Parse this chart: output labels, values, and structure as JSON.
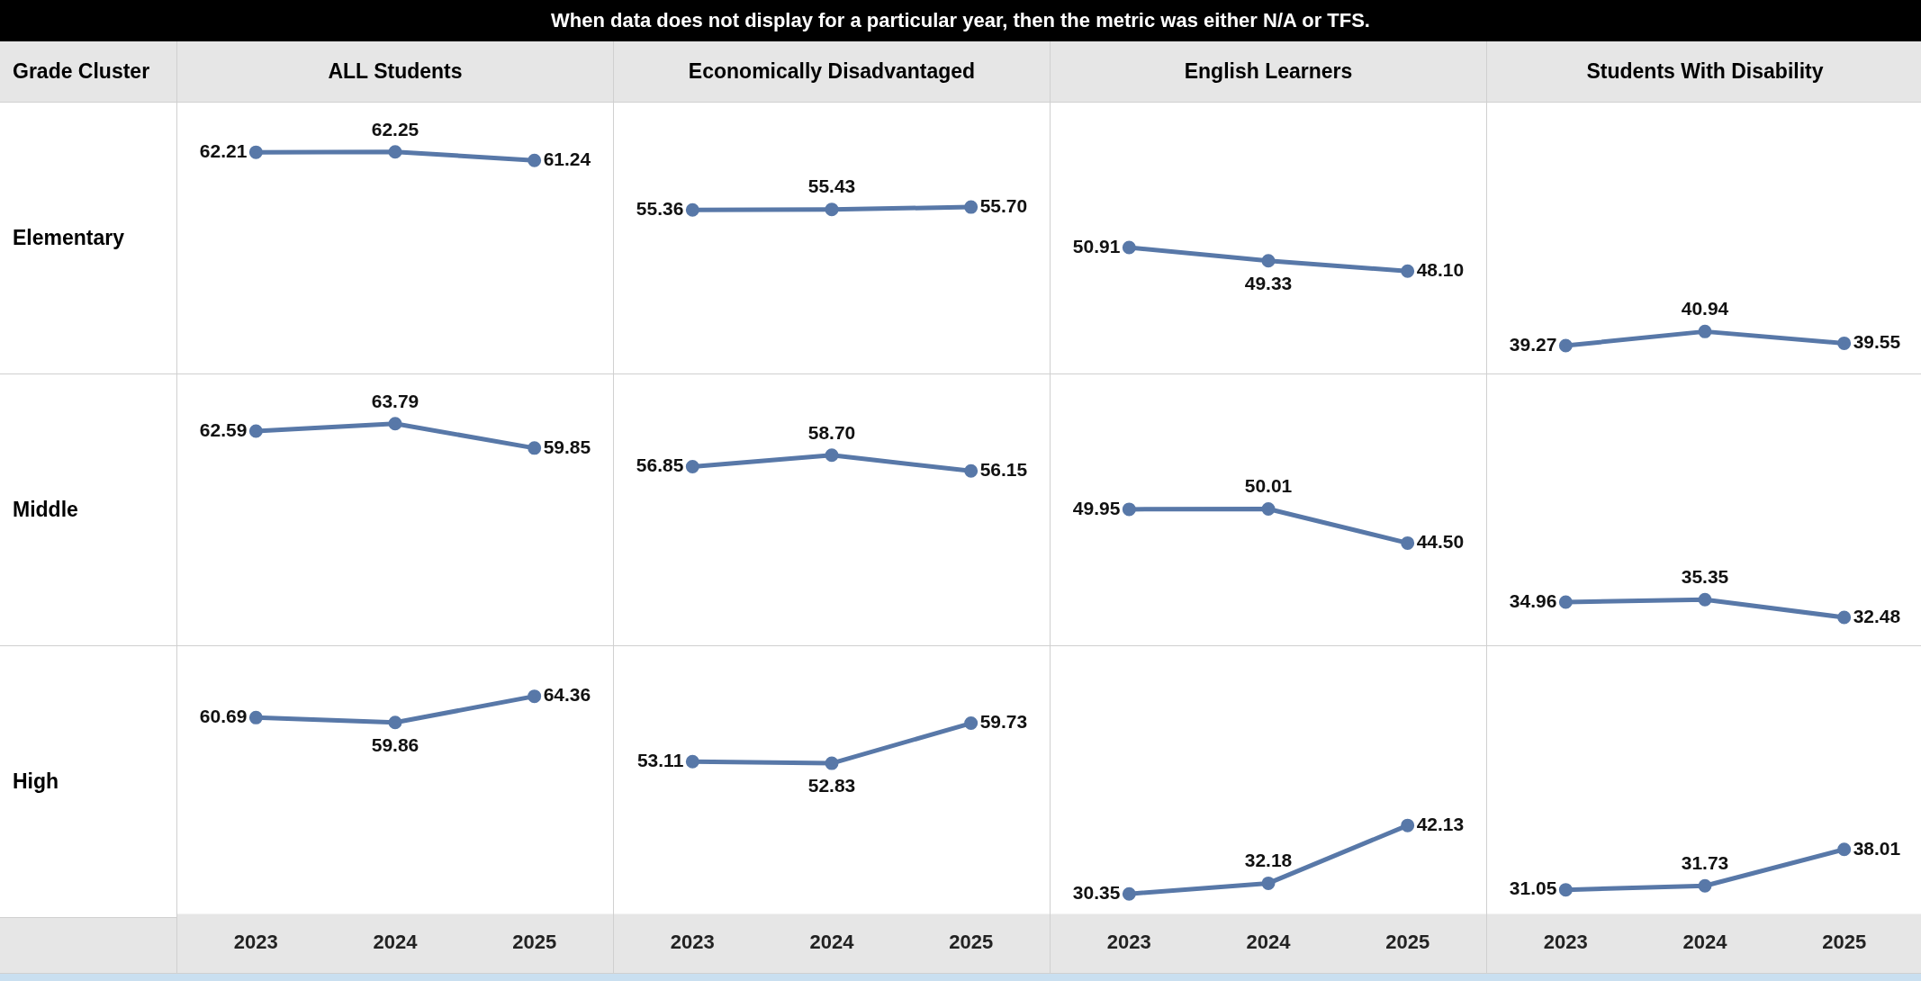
{
  "chart_data": [
    {
      "type": "line",
      "title": "ALL Students",
      "ylabel": "Elementary",
      "annotations": [
        "When data does not display for a particular year, then the metric was either N/A or TFS.",
        "Grade Cluster"
      ],
      "categories": [
        "2023",
        "2024",
        "2025"
      ],
      "values": [
        62.21,
        62.25,
        61.24
      ],
      "value_labels": [
        "62.21",
        "62.25",
        "61.24"
      ],
      "color": "#5878a8",
      "marker": "circle",
      "tick_labels": false
    },
    {
      "type": "line",
      "title": "Economically Disadvantaged",
      "categories": [
        "2023",
        "2024",
        "2025"
      ],
      "values": [
        55.36,
        55.43,
        55.7
      ],
      "value_labels": [
        "55.36",
        "55.43",
        "55.70"
      ],
      "color": "#5878a8",
      "marker": "circle",
      "tick_labels": false
    },
    {
      "type": "line",
      "title": "English Learners",
      "categories": [
        "2023",
        "2024",
        "2025"
      ],
      "values": [
        50.91,
        49.33,
        48.1
      ],
      "value_labels": [
        "50.91",
        "49.33",
        "48.10"
      ],
      "color": "#5878a8",
      "marker": "circle",
      "tick_labels": false
    },
    {
      "type": "line",
      "title": "Students With Disability",
      "categories": [
        "2023",
        "2024",
        "2025"
      ],
      "values": [
        39.27,
        40.94,
        39.55
      ],
      "value_labels": [
        "39.27",
        "40.94",
        "39.55"
      ],
      "color": "#5878a8",
      "marker": "circle",
      "tick_labels": false
    },
    {
      "type": "line",
      "ylabel": "Middle",
      "categories": [
        "2023",
        "2024",
        "2025"
      ],
      "values": [
        62.59,
        63.79,
        59.85
      ],
      "value_labels": [
        "62.59",
        "63.79",
        "59.85"
      ],
      "color": "#5878a8",
      "marker": "circle",
      "tick_labels": false
    },
    {
      "type": "line",
      "categories": [
        "2023",
        "2024",
        "2025"
      ],
      "values": [
        56.85,
        58.7,
        56.15
      ],
      "value_labels": [
        "56.85",
        "58.70",
        "56.15"
      ],
      "color": "#5878a8",
      "marker": "circle",
      "tick_labels": false
    },
    {
      "type": "line",
      "categories": [
        "2023",
        "2024",
        "2025"
      ],
      "values": [
        49.95,
        50.01,
        44.5
      ],
      "value_labels": [
        "49.95",
        "50.01",
        "44.50"
      ],
      "color": "#5878a8",
      "marker": "circle",
      "tick_labels": false
    },
    {
      "type": "line",
      "categories": [
        "2023",
        "2024",
        "2025"
      ],
      "values": [
        34.96,
        35.35,
        32.48
      ],
      "value_labels": [
        "34.96",
        "35.35",
        "32.48"
      ],
      "color": "#5878a8",
      "marker": "circle",
      "tick_labels": false
    },
    {
      "type": "line",
      "ylabel": "High",
      "categories": [
        "2023",
        "2024",
        "2025"
      ],
      "values": [
        60.69,
        59.86,
        64.36
      ],
      "value_labels": [
        "60.69",
        "59.86",
        "64.36"
      ],
      "color": "#5878a8",
      "marker": "circle",
      "tick_labels": "x"
    },
    {
      "type": "line",
      "categories": [
        "2023",
        "2024",
        "2025"
      ],
      "values": [
        53.11,
        52.83,
        59.73
      ],
      "value_labels": [
        "53.11",
        "52.83",
        "59.73"
      ],
      "color": "#5878a8",
      "marker": "circle",
      "tick_labels": "x"
    },
    {
      "type": "line",
      "categories": [
        "2023",
        "2024",
        "2025"
      ],
      "values": [
        30.35,
        32.18,
        42.13
      ],
      "value_labels": [
        "30.35",
        "32.18",
        "42.13"
      ],
      "color": "#5878a8",
      "marker": "circle",
      "tick_labels": "x"
    },
    {
      "type": "line",
      "categories": [
        "2023",
        "2024",
        "2025"
      ],
      "values": [
        31.05,
        31.73,
        38.01
      ],
      "value_labels": [
        "31.05",
        "31.73",
        "38.01"
      ],
      "color": "#5878a8",
      "marker": "circle",
      "tick_labels": "x"
    }
  ]
}
